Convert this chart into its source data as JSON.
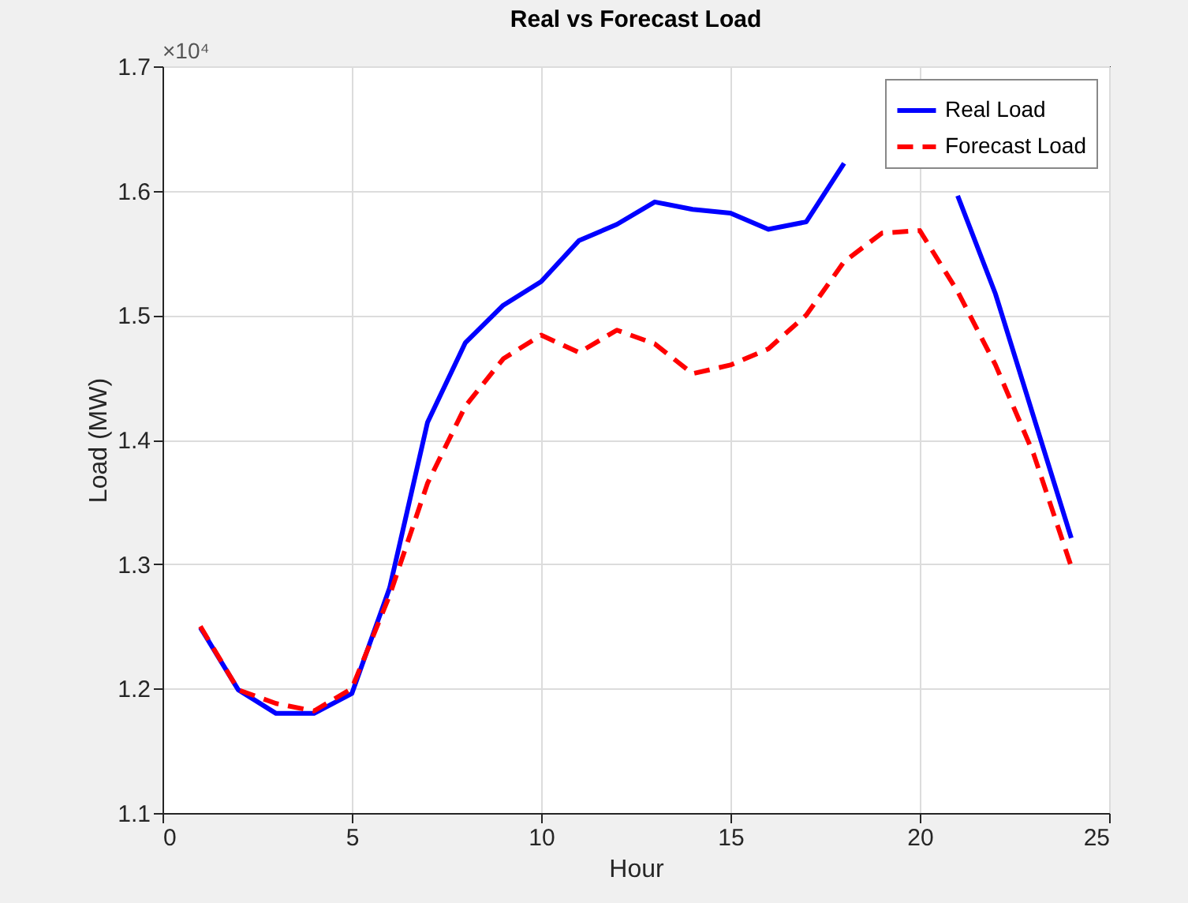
{
  "chart_data": {
    "type": "line",
    "title": "Real vs Forecast Load",
    "xlabel": "Hour",
    "ylabel": "Load (MW)",
    "x": [
      1,
      2,
      3,
      4,
      5,
      6,
      7,
      8,
      9,
      10,
      11,
      12,
      13,
      14,
      15,
      16,
      17,
      18,
      19,
      20,
      21,
      22,
      23,
      24
    ],
    "series": [
      {
        "name": "Real Load",
        "color": "#0000ff",
        "line_style": "solid",
        "values": [
          1.249,
          1.199,
          1.18,
          1.18,
          1.196,
          1.281,
          1.414,
          1.478,
          1.508,
          1.527,
          1.56,
          1.573,
          1.591,
          1.585,
          1.582,
          1.569,
          1.575,
          1.622,
          null,
          null,
          1.596,
          1.517,
          1.419,
          1.321
        ]
      },
      {
        "name": "Forecast Load",
        "color": "#ff0000",
        "line_style": "dashed",
        "values": [
          1.25,
          1.199,
          1.188,
          1.182,
          1.2,
          1.275,
          1.365,
          1.427,
          1.465,
          1.484,
          1.47,
          1.488,
          1.477,
          1.453,
          1.46,
          1.473,
          1.5,
          1.543,
          1.566,
          1.568,
          1.519,
          1.46,
          1.389,
          1.298
        ]
      }
    ],
    "xlim": [
      0,
      25
    ],
    "xticks": [
      0,
      5,
      10,
      15,
      20,
      25
    ],
    "ylim": [
      1.1,
      1.7
    ],
    "yticks": [
      1.1,
      1.2,
      1.3,
      1.4,
      1.5,
      1.6,
      1.7
    ],
    "annotations": [
      "×10⁴"
    ],
    "grid": true,
    "legend": "top right"
  }
}
